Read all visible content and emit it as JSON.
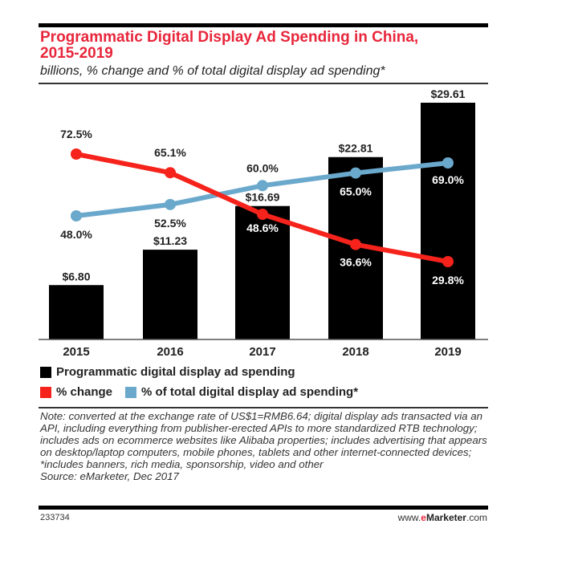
{
  "header": {
    "title_line1": "Programmatic Digital Display Ad Spending in China,",
    "title_line2": "2015-2019",
    "subtitle": "billions, % change and % of total digital display ad spending*"
  },
  "colors": {
    "title": "#e8263b",
    "bars": "#000000",
    "pct_change": "#f5231b",
    "pct_total": "#6aa8cc"
  },
  "chart_data": {
    "type": "bar",
    "title": "Programmatic Digital Display Ad Spending in China, 2015-2019",
    "subtitle": "billions, % change and % of total digital display ad spending*",
    "categories": [
      "2015",
      "2016",
      "2017",
      "2018",
      "2019"
    ],
    "series": [
      {
        "name": "Programmatic digital display ad spending",
        "type": "bar",
        "values": [
          6.8,
          11.23,
          16.69,
          22.81,
          29.61
        ],
        "labels": [
          "$6.80",
          "$11.23",
          "$16.69",
          "$22.81",
          "$29.61"
        ]
      },
      {
        "name": "% change",
        "type": "line",
        "values": [
          72.5,
          65.1,
          48.6,
          36.6,
          29.8
        ],
        "labels": [
          "72.5%",
          "65.1%",
          "48.6%",
          "36.6%",
          "29.8%"
        ]
      },
      {
        "name": "% of total digital display ad spending*",
        "type": "line",
        "values": [
          48.0,
          52.5,
          60.0,
          65.0,
          69.0
        ],
        "labels": [
          "48.0%",
          "52.5%",
          "60.0%",
          "65.0%",
          "69.0%"
        ]
      }
    ],
    "xlabel": "",
    "ylabel": "",
    "ylim": [
      0,
      30
    ],
    "grid": false,
    "legend_position": "bottom"
  },
  "legend": {
    "bars": "Programmatic digital display ad spending",
    "pct_change": "% change",
    "pct_total": "% of total digital display ad spending*"
  },
  "notes": {
    "text": "Note: converted at the exchange rate of US$1=RMB6.64; digital display ads transacted via an API, including everything from publisher-erected APIs to more standardized RTB technology; includes ads on ecommerce websites like Alibaba properties; includes advertising that appears on desktop/laptop computers, mobile phones, tablets and other internet-connected devices; *includes banners, rich media, sponsorship, video and other",
    "source": "Source: eMarketer, Dec 2017"
  },
  "footer": {
    "chart_id": "233734",
    "brand_prefix": "www.",
    "brand_e": "e",
    "brand_name": "Marketer",
    "brand_suffix": ".com"
  }
}
